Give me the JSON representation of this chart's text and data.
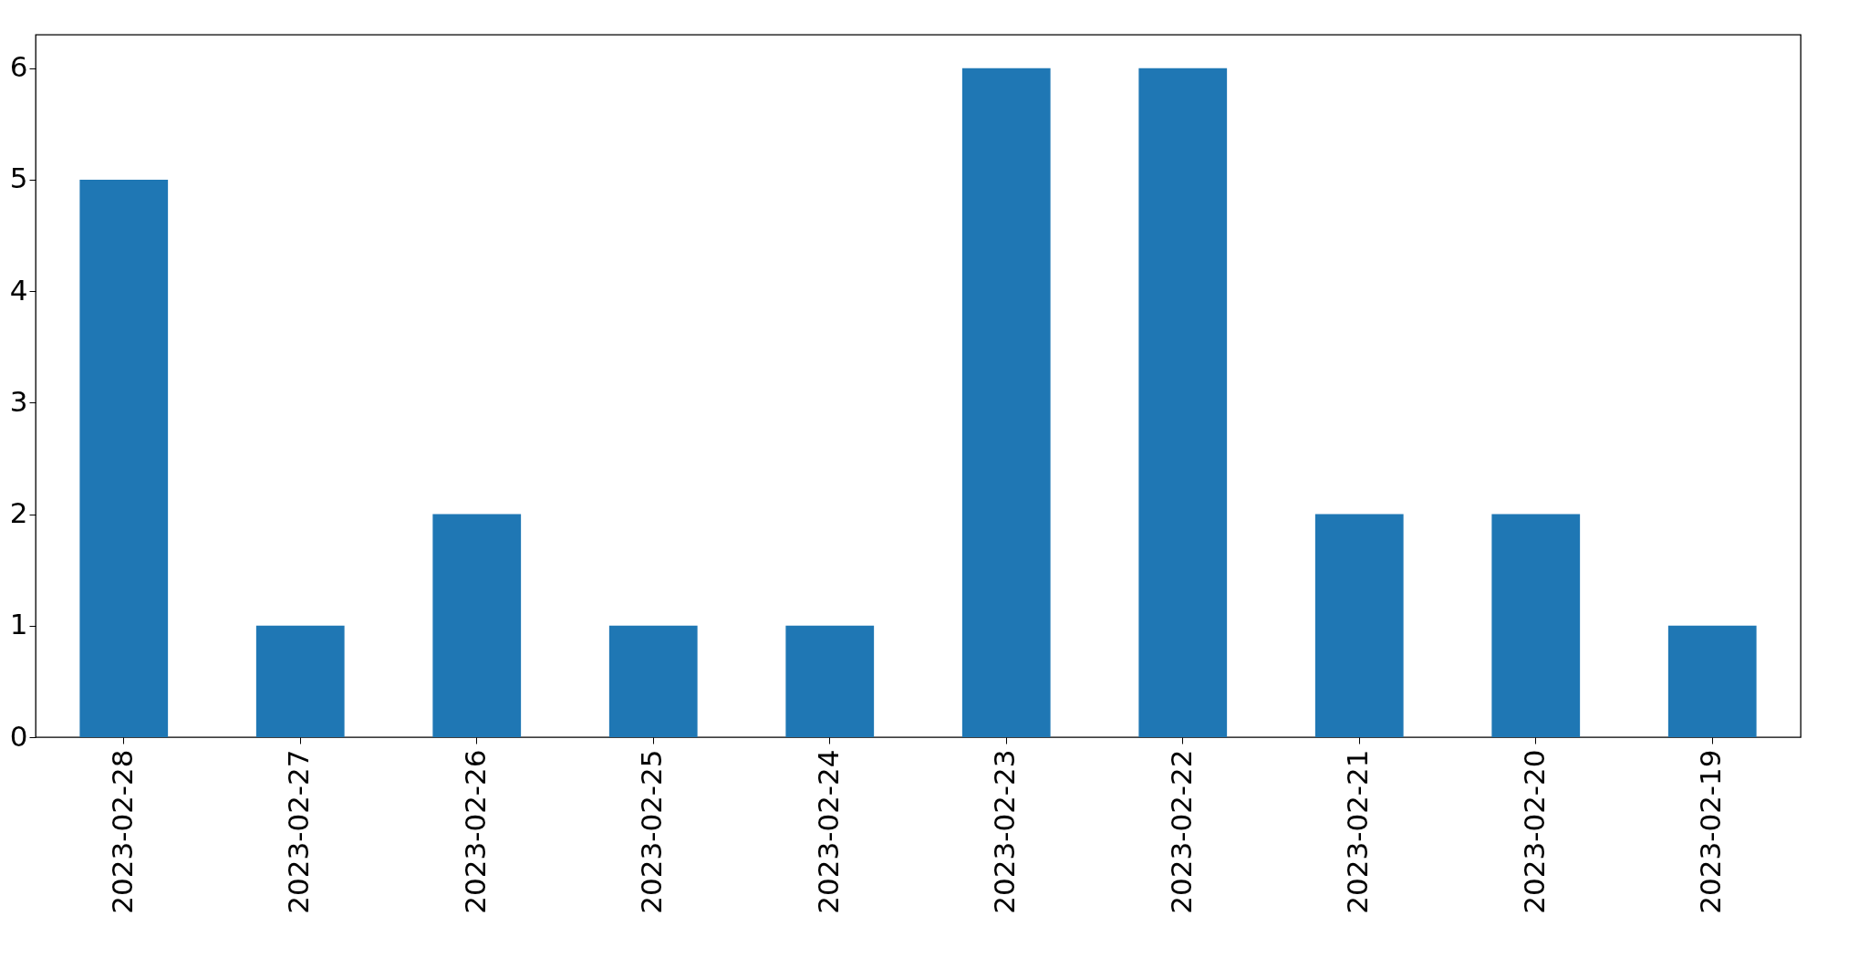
{
  "chart_data": {
    "type": "bar",
    "categories": [
      "2023-02-28",
      "2023-02-27",
      "2023-02-26",
      "2023-02-25",
      "2023-02-24",
      "2023-02-23",
      "2023-02-22",
      "2023-02-21",
      "2023-02-20",
      "2023-02-19"
    ],
    "values": [
      5,
      1,
      2,
      1,
      1,
      6,
      6,
      2,
      2,
      1
    ],
    "color": "#1f77b4",
    "ylim": [
      0,
      6.3
    ],
    "yticks": [
      0,
      1,
      2,
      3,
      4,
      5,
      6
    ],
    "grid": false
  }
}
